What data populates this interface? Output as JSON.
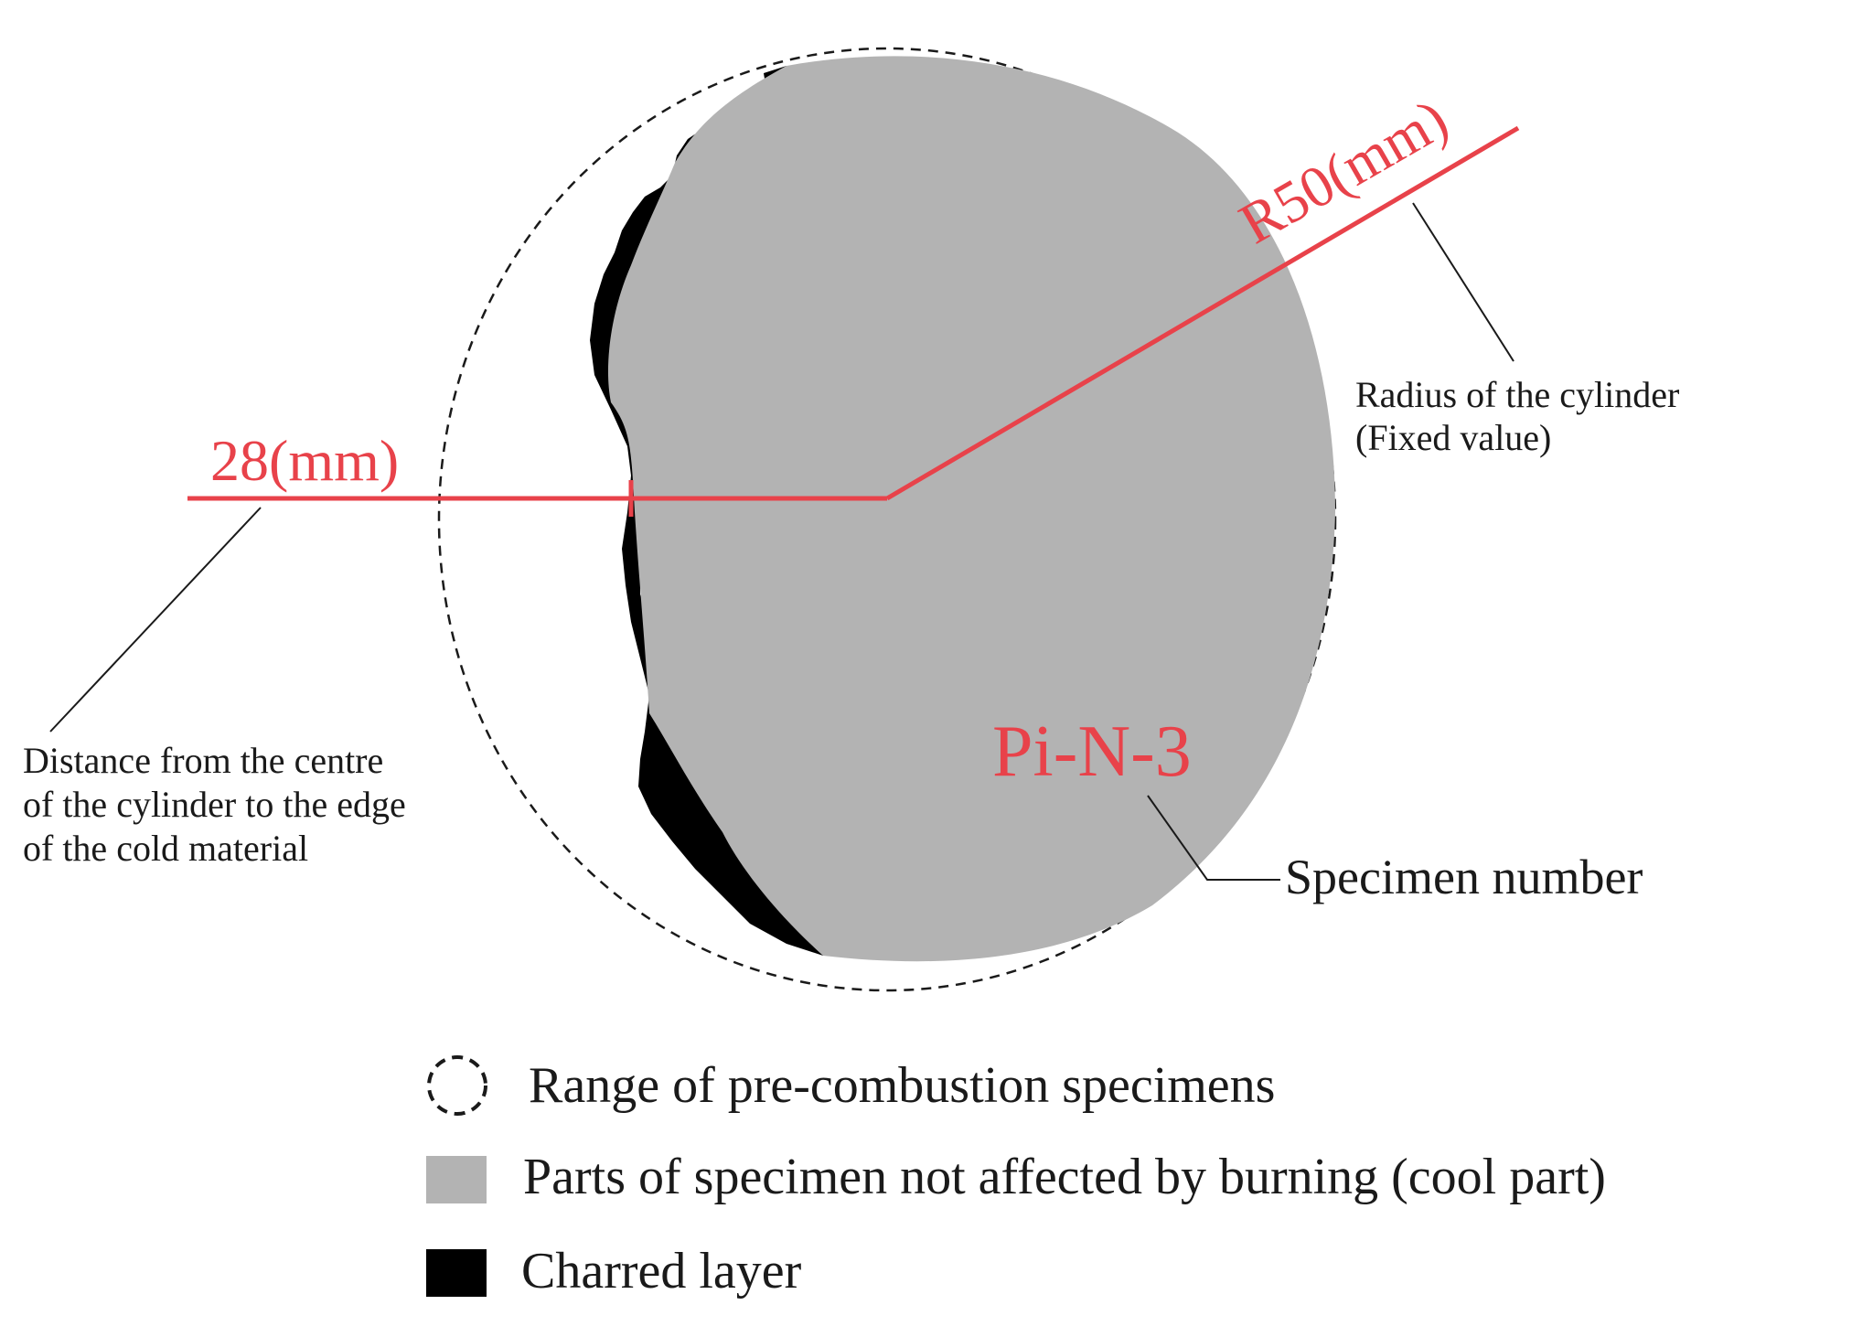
{
  "labels": {
    "radius_value": "R50(mm)",
    "radius_desc_line1": "Radius of the cylinder",
    "radius_desc_line2": "(Fixed value)",
    "distance_value": "28(mm)",
    "distance_desc_line1": "Distance from the centre",
    "distance_desc_line2": "of the cylinder to the edge",
    "distance_desc_line3": "of the cold material",
    "specimen_id": "Pi-N-3",
    "specimen_desc": "Specimen number"
  },
  "legend": {
    "items": [
      {
        "label": "Range of pre-combustion specimens",
        "icon": "dashed-circle-icon"
      },
      {
        "label": "Parts of specimen not affected by burning (cool part)",
        "icon": "gray-square-icon"
      },
      {
        "label": "Charred layer",
        "icon": "black-square-icon"
      }
    ]
  },
  "colors": {
    "cool_part": "#b3b3b3",
    "charred_layer": "#000000",
    "annotation_red": "#e8424a",
    "leader_line": "#1a1a1a"
  }
}
